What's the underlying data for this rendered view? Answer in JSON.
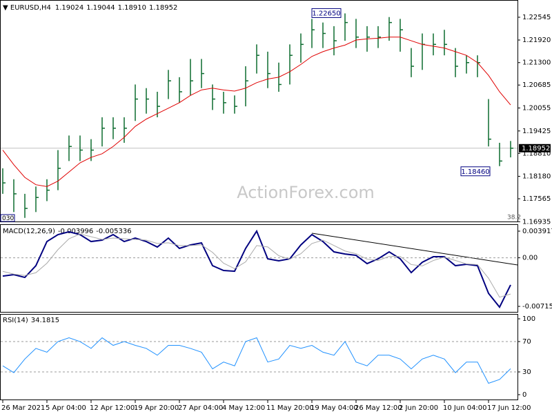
{
  "header": {
    "symbol": "EURUSD,H4",
    "quote": [
      "1.19024",
      "1.19044",
      "1.18910"
    ]
  },
  "watermark": "ActionForex.com",
  "chart_data": [
    {
      "type": "ohlc",
      "color": "#0b6b2e",
      "high": [
        1.184,
        1.181,
        1.177,
        1.179,
        1.181,
        1.189,
        1.193,
        1.193,
        1.192,
        1.198,
        1.198,
        1.198,
        1.207,
        1.206,
        1.205,
        1.211,
        1.209,
        1.214,
        1.214,
        1.207,
        1.205,
        1.204,
        1.212,
        1.218,
        1.216,
        1.213,
        1.218,
        1.221,
        1.225,
        1.224,
        1.223,
        1.2265,
        1.225,
        1.223,
        1.223,
        1.2255,
        1.225,
        1.217,
        1.221,
        1.221,
        1.222,
        1.217,
        1.215,
        1.215,
        1.203,
        1.191,
        1.1915
      ],
      "low": [
        1.177,
        1.172,
        1.1704,
        1.172,
        1.175,
        1.178,
        1.186,
        1.186,
        1.186,
        1.19,
        1.192,
        1.191,
        1.197,
        1.199,
        1.198,
        1.203,
        1.202,
        1.204,
        1.206,
        1.2,
        1.199,
        1.199,
        1.201,
        1.21,
        1.206,
        1.205,
        1.207,
        1.213,
        1.217,
        1.217,
        1.215,
        1.219,
        1.217,
        1.216,
        1.217,
        1.219,
        1.216,
        1.209,
        1.211,
        1.215,
        1.215,
        1.209,
        1.21,
        1.209,
        1.19,
        1.1846,
        1.187
      ],
      "close": [
        1.18,
        1.177,
        1.173,
        1.176,
        1.178,
        1.184,
        1.19,
        1.189,
        1.189,
        1.195,
        1.195,
        1.195,
        1.203,
        1.203,
        1.201,
        1.208,
        1.205,
        1.208,
        1.21,
        1.203,
        1.202,
        1.201,
        1.208,
        1.215,
        1.21,
        1.207,
        1.215,
        1.218,
        1.222,
        1.221,
        1.219,
        1.224,
        1.22,
        1.22,
        1.22,
        1.224,
        1.222,
        1.212,
        1.218,
        1.218,
        1.218,
        1.212,
        1.213,
        1.213,
        1.192,
        1.186,
        1.18952
      ],
      "ma": {
        "color": "#e00000",
        "values": [
          1.189,
          1.185,
          1.1815,
          1.1795,
          1.179,
          1.1805,
          1.183,
          1.1855,
          1.187,
          1.188,
          1.19,
          1.1925,
          1.1955,
          1.1975,
          1.199,
          1.2005,
          1.202,
          1.204,
          1.2055,
          1.206,
          1.2055,
          1.2052,
          1.206,
          1.2075,
          1.2085,
          1.209,
          1.2105,
          1.2125,
          1.2147,
          1.216,
          1.217,
          1.2178,
          1.2192,
          1.2195,
          1.2197,
          1.22,
          1.22,
          1.219,
          1.218,
          1.2175,
          1.217,
          1.216,
          1.215,
          1.213,
          1.2095,
          1.205,
          1.2014
        ]
      },
      "ylim": [
        1.1696,
        1.2298
      ],
      "yticks": [
        1.22545,
        {
          "value": 1.2192,
          "label": "1.21920"
        },
        {
          "value": 1.213,
          "label": "1.21300"
        },
        1.20685,
        1.20055,
        1.19425,
        {
          "value": 1.1881,
          "label": "1.18810"
        },
        {
          "value": 1.1818,
          "label": "1.18180"
        },
        1.17565,
        1.16935
      ],
      "annotations": [
        {
          "value": 1.2265,
          "label": "1.22650"
        },
        {
          "value": 1.1846,
          "label": "1.18460"
        }
      ],
      "notes": [
        "030",
        "38.2"
      ]
    },
    {
      "type": "line",
      "title": "MACD(12,26,9)",
      "series": [
        {
          "color": "#000080",
          "values": [
            -0.00269,
            -0.00248,
            -0.00289,
            -0.00116,
            0.00239,
            0.00341,
            0.00382,
            0.00341,
            0.00239,
            0.0026,
            0.00341,
            0.00239,
            0.0029,
            0.00239,
            0.00158,
            0.0029,
            0.00138,
            0.00189,
            0.00219,
            -0.00116,
            -0.00187,
            -0.00198,
            0.00138,
            0.00392,
            -0.00015,
            -0.00045,
            -0.00015,
            0.00189,
            0.00341,
            0.00239,
            0.00087,
            0.00056,
            0.00036,
            -0.00086,
            -0.00015,
            0.00087,
            -0.00015,
            -0.00218,
            -0.00066,
            0.00016,
            0.00016,
            -0.00116,
            -0.00096,
            -0.00116,
            -0.00523,
            -0.00726,
            -0.003996
          ]
        },
        {
          "color": "#a9a9a9",
          "values": [
            -0.002,
            -0.0024,
            -0.0026,
            -0.0022,
            -0.0008,
            0.0012,
            0.0028,
            0.0035,
            0.0031,
            0.0027,
            0.0029,
            0.0028,
            0.0027,
            0.0026,
            0.0021,
            0.0022,
            0.0018,
            0.0018,
            0.0019,
            0.0008,
            -0.0008,
            -0.0016,
            -0.0006,
            0.0018,
            0.0016,
            0.0003,
            -0.0002,
            0.0006,
            0.0021,
            0.0026,
            0.0018,
            0.001,
            0.0006,
            -0.0002,
            -0.0004,
            0.0002,
            0.0002,
            -0.001,
            -0.0012,
            -0.0004,
            0.0001,
            -0.0004,
            -0.0009,
            -0.001,
            -0.003,
            -0.0058,
            -0.005336
          ]
        }
      ],
      "ylim": [
        -0.00796,
        0.00473
      ],
      "yticks": [
        0.003917,
        {
          "value": 0,
          "label": "0.00"
        },
        -0.007152
      ]
    },
    {
      "type": "line",
      "title": "RSI(14)",
      "categories": [
        "26 Mar 2021",
        null,
        null,
        null,
        "5 Apr 04:00",
        null,
        null,
        null,
        "12 Apr 12:00",
        null,
        null,
        null,
        "19 Apr 20:00",
        null,
        null,
        null,
        "27 Apr 04:00",
        null,
        null,
        null,
        "4 May 12:00",
        null,
        null,
        null,
        "11 May 20:00",
        null,
        null,
        null,
        "19 May 04:00",
        null,
        null,
        null,
        "26 May 12:00",
        null,
        null,
        null,
        "2 Jun 20:00",
        null,
        null,
        null,
        "10 Jun 04:00",
        null,
        null,
        null,
        "17 Jun 12:00",
        null,
        null
      ],
      "series": [
        {
          "color": "#1e90ff",
          "values": [
            38,
            29,
            47,
            61,
            56,
            70,
            75,
            70,
            61,
            75,
            65,
            70,
            65,
            61,
            52,
            65,
            65,
            61,
            56,
            34,
            43,
            38,
            70,
            75,
            43,
            47,
            65,
            61,
            65,
            56,
            52,
            70,
            43,
            38,
            52,
            52,
            47,
            34,
            47,
            52,
            47,
            29,
            43,
            43,
            15,
            20,
            34.1815
          ]
        }
      ],
      "ylim": [
        -7.3,
        105.5
      ],
      "yticks": [
        100,
        70,
        30,
        0
      ]
    }
  ]
}
